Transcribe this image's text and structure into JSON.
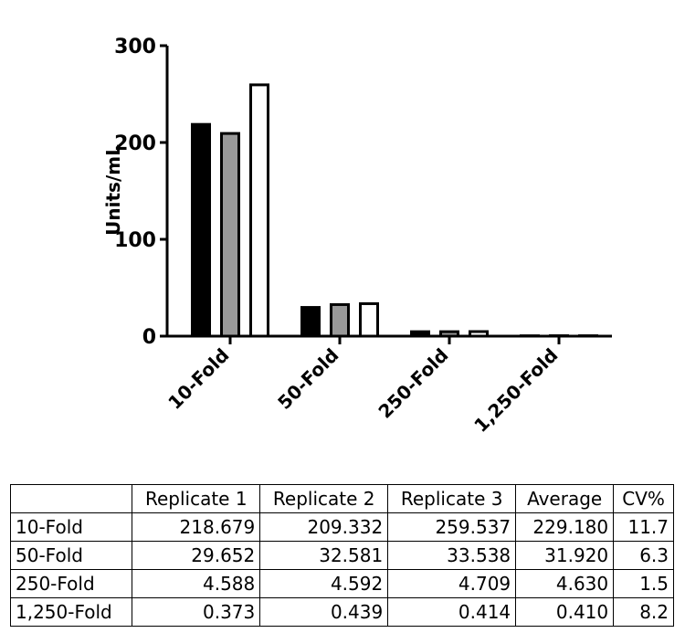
{
  "chart_data": {
    "type": "bar",
    "title": "",
    "xlabel": "",
    "ylabel": "Units/mL",
    "ylim": [
      0,
      300
    ],
    "yticks": [
      0,
      100,
      200,
      300
    ],
    "categories": [
      "10-Fold",
      "50-Fold",
      "250-Fold",
      "1,250-Fold"
    ],
    "series": [
      {
        "values": [
          218.679,
          29.652,
          4.588,
          0.373
        ],
        "color": "#000000"
      },
      {
        "values": [
          209.332,
          32.581,
          4.592,
          0.439
        ],
        "color": "#999999"
      },
      {
        "values": [
          259.537,
          33.538,
          4.709,
          0.414
        ],
        "color": "#ffffff"
      }
    ],
    "grid": false,
    "legend": "none"
  },
  "table": {
    "headers": [
      "",
      "Replicate 1",
      "Replicate 2",
      "Replicate 3",
      "Average",
      "CV%"
    ],
    "rows": [
      [
        "10-Fold",
        "218.679",
        "209.332",
        "259.537",
        "229.180",
        "11.7"
      ],
      [
        "50-Fold",
        "29.652",
        "32.581",
        "33.538",
        "31.920",
        "6.3"
      ],
      [
        "250-Fold",
        "4.588",
        "4.592",
        "4.709",
        "4.630",
        "1.5"
      ],
      [
        "1,250-Fold",
        "0.373",
        "0.439",
        "0.414",
        "0.410",
        "8.2"
      ]
    ]
  }
}
